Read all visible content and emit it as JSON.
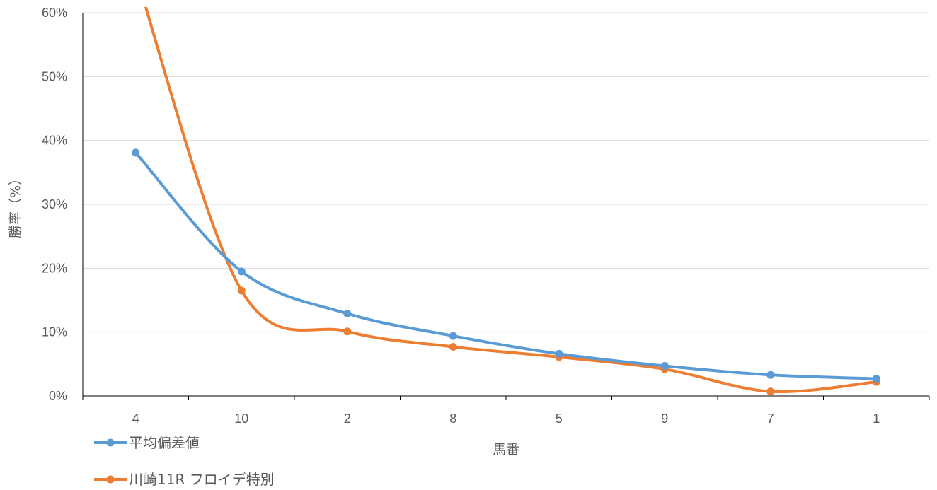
{
  "chart_data": {
    "type": "line",
    "title": "",
    "xlabel": "馬番",
    "ylabel": "勝率（%）",
    "categories": [
      "4",
      "10",
      "2",
      "8",
      "5",
      "9",
      "7",
      "1"
    ],
    "y_ticks": [
      "0%",
      "10%",
      "20%",
      "30%",
      "40%",
      "50%",
      "60%"
    ],
    "ylim": [
      0,
      60
    ],
    "y_unit": "%",
    "grid": true,
    "smoothed": true,
    "legend_position": "bottom-left",
    "series": [
      {
        "name": "平均偏差値",
        "color": "#5B9BD5",
        "values": [
          38.1,
          19.5,
          12.9,
          9.4,
          6.6,
          4.7,
          3.3,
          2.7
        ]
      },
      {
        "name": "川崎11R フロイデ特別",
        "color": "#ED7D31",
        "values": [
          66.0,
          16.5,
          10.1,
          7.7,
          6.1,
          4.2,
          0.7,
          2.2
        ]
      }
    ]
  }
}
